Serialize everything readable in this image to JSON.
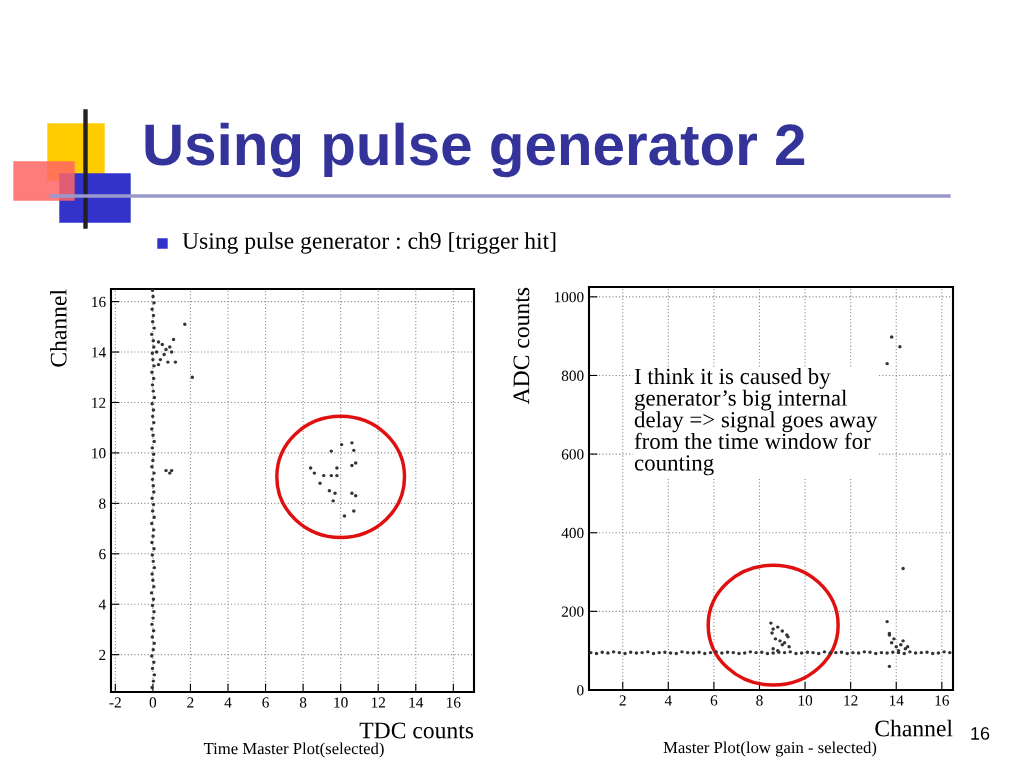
{
  "chart_data": [
    {
      "type": "scatter",
      "title": "Using pulse generator 2",
      "subtitle": "Using pulse generator : ch9 [trigger hit]",
      "xlabel": "TDC counts",
      "ylabel": "Channel",
      "annotations": [
        "Time Master Plot(selected)"
      ],
      "xlim": [
        -2.23,
        17.1
      ],
      "ylim": [
        0.52,
        16.5
      ],
      "xticks": [
        -2,
        0,
        2,
        4,
        6,
        8,
        10,
        12,
        14,
        16
      ],
      "yticks": [
        2,
        4,
        6,
        8,
        10,
        12,
        14,
        16
      ],
      "grid": true,
      "marker": "circle",
      "series": [
        {
          "color": "#333333",
          "x": [
            -0.04,
            0.03,
            0.08,
            -0.02,
            0.05,
            -0.06,
            0.02,
            0.07,
            -0.03,
            0.04,
            -0.05,
            0.01,
            0.06,
            -0.02,
            0.03,
            -0.07,
            0.05,
            0.0,
            -0.04,
            0.08,
            0.02,
            -0.03,
            0.06,
            -0.05,
            0.01,
            0.04,
            -0.06,
            0.07,
            -0.01,
            0.03,
            -0.04,
            0.05,
            0.02,
            -0.02,
            0.06,
            -0.05,
            0.0,
            0.04,
            -0.03,
            0.07,
            0.01,
            -0.06,
            0.05,
            -0.01,
            0.03,
            -0.04,
            0.08,
            0.02,
            -0.02,
            0.04,
            -0.05,
            0.06,
            0.0,
            -0.03,
            0.05,
            0.02,
            -0.06,
            0.07,
            -0.01,
            0.03,
            -0.04,
            0.06,
            0.01,
            -0.02,
            0.3,
            0.5,
            0.9,
            1.1,
            0.2,
            0.6,
            1.0,
            0.4,
            0.8,
            1.2,
            0.3,
            0.7,
            0.7,
            0.9,
            1.0,
            1.7,
            2.1,
            9.5,
            10.05,
            10.6,
            10.7,
            10.6,
            10.8,
            8.4,
            8.6,
            9.1,
            9.5,
            9.8,
            8.9,
            9.4,
            9.7,
            9.6,
            10.6,
            10.8,
            10.2,
            10.7,
            9.8
          ],
          "values": [
            0.7,
            0.95,
            1.2,
            1.45,
            1.7,
            1.95,
            2.2,
            2.45,
            2.7,
            2.95,
            3.2,
            3.45,
            3.7,
            3.95,
            4.2,
            4.45,
            4.7,
            4.95,
            5.2,
            5.45,
            5.7,
            5.95,
            6.2,
            6.45,
            6.7,
            6.95,
            7.2,
            7.45,
            7.7,
            7.95,
            8.2,
            8.45,
            8.7,
            8.95,
            9.2,
            9.45,
            9.7,
            9.95,
            10.2,
            10.45,
            10.7,
            10.95,
            11.2,
            11.45,
            11.7,
            11.95,
            12.2,
            12.45,
            12.7,
            12.95,
            13.2,
            13.45,
            13.7,
            13.95,
            14.2,
            14.45,
            14.7,
            14.95,
            15.2,
            15.45,
            15.7,
            15.95,
            16.2,
            16.45,
            14.4,
            14.3,
            14.2,
            14.5,
            14.0,
            13.9,
            14.0,
            13.7,
            13.6,
            13.6,
            13.5,
            14.1,
            9.3,
            9.2,
            9.3,
            15.1,
            13.0,
            10.07,
            10.33,
            10.4,
            10.1,
            9.5,
            9.6,
            9.4,
            9.2,
            9.1,
            9.1,
            9.1,
            8.8,
            8.5,
            8.4,
            8.1,
            8.4,
            8.3,
            7.5,
            7.7,
            9.4
          ]
        }
      ]
    },
    {
      "type": "scatter",
      "xlabel": "Channel",
      "ylabel": "ADC counts",
      "annotations": [
        "I think it is caused by generator’s big internal delay => signal goes away from the time window for counting",
        "Master Plot(low gain - selected)",
        "16"
      ],
      "xlim": [
        0.52,
        16.49
      ],
      "ylim": [
        0,
        1025
      ],
      "xticks": [
        2,
        4,
        6,
        8,
        10,
        12,
        14,
        16
      ],
      "yticks": [
        0,
        200,
        400,
        600,
        800,
        1000
      ],
      "grid": true,
      "marker": "circle",
      "series": [
        {
          "color": "#333333",
          "x": [
            0.6,
            0.85,
            1.1,
            1.35,
            1.6,
            1.85,
            2.1,
            2.35,
            2.6,
            2.85,
            3.1,
            3.35,
            3.6,
            3.85,
            4.1,
            4.35,
            4.6,
            4.85,
            5.1,
            5.35,
            5.6,
            5.85,
            6.1,
            6.35,
            6.6,
            6.85,
            7.1,
            7.35,
            7.6,
            7.85,
            8.1,
            8.35,
            8.6,
            8.85,
            9.1,
            9.35,
            9.6,
            9.85,
            10.1,
            10.35,
            10.6,
            10.85,
            11.1,
            11.35,
            11.6,
            11.85,
            12.1,
            12.35,
            12.6,
            12.85,
            13.1,
            13.35,
            13.6,
            13.85,
            14.1,
            14.35,
            14.6,
            14.85,
            15.1,
            15.35,
            15.6,
            15.85,
            16.1,
            16.35,
            8.5,
            8.6,
            8.8,
            9.0,
            9.2,
            8.7,
            8.9,
            9.1,
            9.3,
            8.6,
            8.8,
            9.0,
            8.55,
            9.25,
            13.8,
            14.0,
            14.2,
            14.4,
            13.9,
            14.1,
            14.3,
            13.7,
            14.5,
            13.8,
            14.16,
            13.6,
            14.3,
            13.6,
            13.7,
            13.7
          ],
          "values": [
            95,
            93,
            96,
            94,
            97,
            95,
            93,
            96,
            94,
            95,
            97,
            93,
            95,
            96,
            94,
            93,
            97,
            95,
            94,
            96,
            93,
            95,
            97,
            94,
            96,
            95,
            93,
            94,
            97,
            95,
            96,
            93,
            94,
            96,
            95,
            97,
            93,
            94,
            96,
            95,
            93,
            97,
            94,
            95,
            96,
            93,
            95,
            94,
            97,
            96,
            93,
            95,
            94,
            96,
            95,
            93,
            97,
            94,
            95,
            96,
            93,
            94,
            97,
            95,
            170,
            155,
            160,
            150,
            140,
            130,
            125,
            120,
            110,
            105,
            100,
            115,
            145,
            135,
            120,
            110,
            115,
            105,
            130,
            100,
            125,
            140,
            110,
            898,
            873,
            830,
            309,
            174,
            144,
            60
          ]
        }
      ]
    }
  ]
}
